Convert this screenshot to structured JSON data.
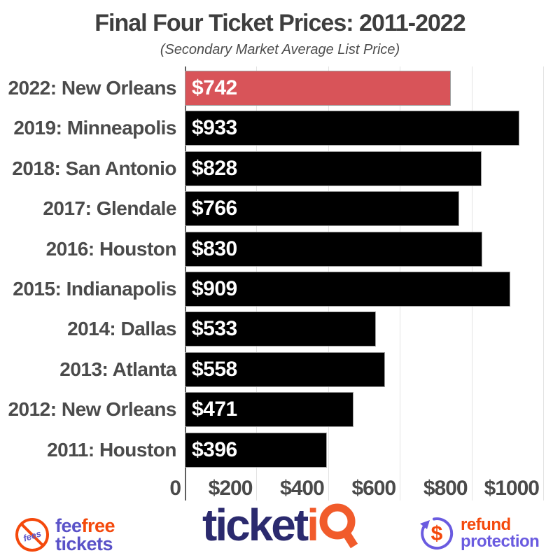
{
  "header": {
    "title": "Final Four Ticket Prices: 2011-2022",
    "subtitle": "(Secondary Market Average List Price)"
  },
  "chart_data": {
    "type": "bar",
    "orientation": "horizontal",
    "title": "Final Four Ticket Prices: 2011-2022",
    "subtitle": "(Secondary Market Average List Price)",
    "categories": [
      "2022: New Orleans",
      "2019: Minneapolis",
      "2018: San Antonio",
      "2017: Glendale",
      "2016: Houston",
      "2015: Indianapolis",
      "2014: Dallas",
      "2013: Atlanta",
      "2012: New Orleans",
      "2011: Houston"
    ],
    "values": [
      742,
      933,
      828,
      766,
      830,
      909,
      533,
      558,
      471,
      396
    ],
    "bar_labels": [
      "$742",
      "$933",
      "$828",
      "$766",
      "$830",
      "$909",
      "$533",
      "$558",
      "$471",
      "$396"
    ],
    "xlim": [
      0,
      1000
    ],
    "x_ticks": [
      {
        "label": "0",
        "value": 0
      },
      {
        "label": "$200",
        "value": 200
      },
      {
        "label": "$400",
        "value": 400
      },
      {
        "label": "$600",
        "value": 600
      },
      {
        "label": "$800",
        "value": 800
      },
      {
        "label": "$1000",
        "value": 1000
      }
    ],
    "grid": "vertical",
    "legend": "none",
    "highlight_index": 0,
    "highlight_color": "#d85459",
    "bar_color": "#000000",
    "value_label_color": "#ffffff"
  },
  "footer": {
    "feefree": {
      "icon_text": "fees",
      "line1_part1": "fee",
      "line1_part2": "free",
      "line2": "tickets",
      "purple": "#5a52c8",
      "orange": "#f4490c"
    },
    "ticketiq": {
      "part1": "ticket",
      "part2": "i",
      "navy": "#2b2a6e",
      "orange": "#f15b2b"
    },
    "refund": {
      "icon_symbol": "$",
      "line1": "refund",
      "line2": "protection",
      "orange": "#f4490c",
      "purple": "#6a5be0"
    }
  }
}
